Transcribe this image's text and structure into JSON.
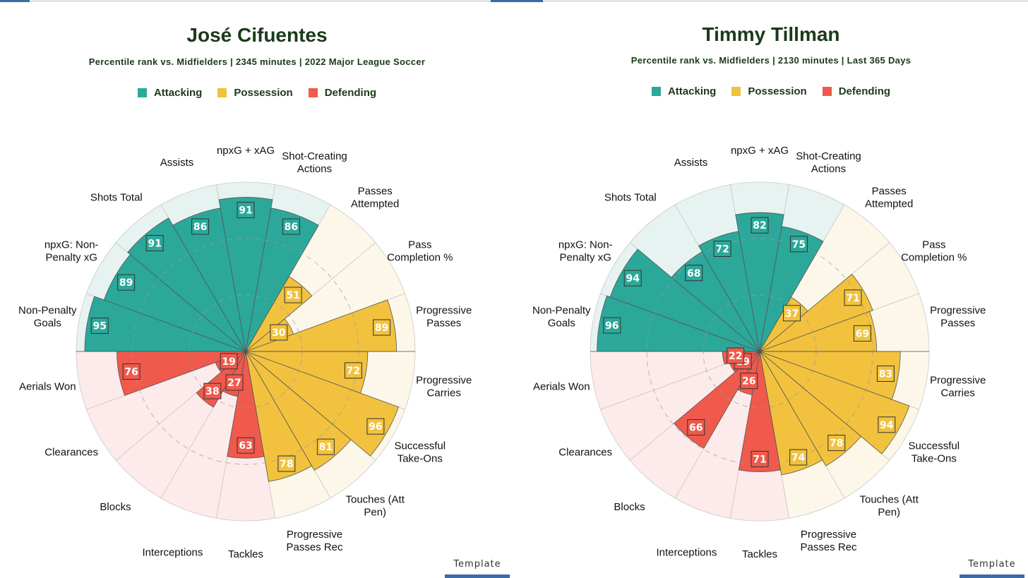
{
  "legend": [
    {
      "label": "Attacking",
      "color": "#2ba89a"
    },
    {
      "label": "Possession",
      "color": "#f2c23e"
    },
    {
      "label": "Defending",
      "color": "#ef5a4c"
    }
  ],
  "colors": {
    "attacking": "#2ba89a",
    "attacking_bg": "#e7f3f1",
    "possession": "#f2c23e",
    "possession_bg": "#fdf7e9",
    "defending": "#ef5a4c",
    "defending_bg": "#fcebea",
    "title": "#1a3a1a"
  },
  "footer": {
    "label": "Template"
  },
  "chart_data": [
    {
      "type": "radar",
      "title": "José Cifuentes",
      "subtitle": "Percentile rank vs. Midfielders | 2345 minutes | 2022 Major League Soccer",
      "range": [
        0,
        100
      ],
      "gridlines": true,
      "categories": [
        {
          "label": "Non-Penalty Goals",
          "group": "attacking"
        },
        {
          "label": "npxG: Non-Penalty xG",
          "group": "attacking"
        },
        {
          "label": "Shots Total",
          "group": "attacking"
        },
        {
          "label": "Assists",
          "group": "attacking"
        },
        {
          "label": "npxG + xAG",
          "group": "attacking"
        },
        {
          "label": "Shot-Creating Actions",
          "group": "attacking"
        },
        {
          "label": "Passes Attempted",
          "group": "possession"
        },
        {
          "label": "Pass Completion %",
          "group": "possession"
        },
        {
          "label": "Progressive Passes",
          "group": "possession"
        },
        {
          "label": "Progressive Carries",
          "group": "possession"
        },
        {
          "label": "Successful Take-Ons",
          "group": "possession"
        },
        {
          "label": "Touches (Att Pen)",
          "group": "possession"
        },
        {
          "label": "Progressive Passes Rec",
          "group": "possession"
        },
        {
          "label": "Tackles",
          "group": "defending"
        },
        {
          "label": "Interceptions",
          "group": "defending"
        },
        {
          "label": "Blocks",
          "group": "defending"
        },
        {
          "label": "Clearances",
          "group": "defending"
        },
        {
          "label": "Aerials Won",
          "group": "defending"
        }
      ],
      "values": [
        95,
        89,
        91,
        86,
        91,
        86,
        51,
        30,
        89,
        72,
        96,
        81,
        78,
        63,
        27,
        38,
        19,
        76
      ]
    },
    {
      "type": "radar",
      "title": "Timmy Tillman",
      "subtitle": "Percentile rank vs. Midfielders | 2130 minutes | Last 365 Days",
      "range": [
        0,
        100
      ],
      "gridlines": true,
      "categories": [
        {
          "label": "Non-Penalty Goals",
          "group": "attacking"
        },
        {
          "label": "npxG: Non-Penalty xG",
          "group": "attacking"
        },
        {
          "label": "Shots Total",
          "group": "attacking"
        },
        {
          "label": "Assists",
          "group": "attacking"
        },
        {
          "label": "npxG + xAG",
          "group": "attacking"
        },
        {
          "label": "Shot-Creating Actions",
          "group": "attacking"
        },
        {
          "label": "Passes Attempted",
          "group": "possession"
        },
        {
          "label": "Pass Completion %",
          "group": "possession"
        },
        {
          "label": "Progressive Passes",
          "group": "possession"
        },
        {
          "label": "Progressive Carries",
          "group": "possession"
        },
        {
          "label": "Successful Take-Ons",
          "group": "possession"
        },
        {
          "label": "Touches (Att Pen)",
          "group": "possession"
        },
        {
          "label": "Progressive Passes Rec",
          "group": "possession"
        },
        {
          "label": "Tackles",
          "group": "defending"
        },
        {
          "label": "Interceptions",
          "group": "defending"
        },
        {
          "label": "Blocks",
          "group": "defending"
        },
        {
          "label": "Clearances",
          "group": "defending"
        },
        {
          "label": "Aerials Won",
          "group": "defending"
        }
      ],
      "values": [
        96,
        94,
        68,
        72,
        82,
        75,
        37,
        71,
        69,
        83,
        94,
        78,
        74,
        71,
        26,
        66,
        19,
        22
      ]
    }
  ]
}
